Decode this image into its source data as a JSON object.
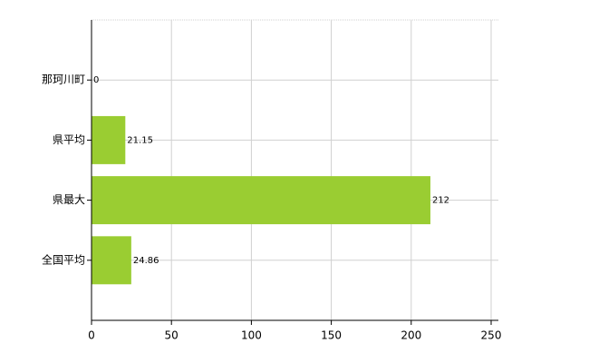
{
  "chart_data": {
    "type": "bar",
    "orientation": "horizontal",
    "categories": [
      "那珂川町",
      "県平均",
      "県最大",
      "全国平均"
    ],
    "values": [
      0,
      21.15,
      212,
      24.86
    ],
    "color": "#9acd32",
    "xlim": [
      0,
      250
    ],
    "xticks": [
      0,
      50,
      100,
      150,
      200,
      250
    ],
    "grid": true
  }
}
